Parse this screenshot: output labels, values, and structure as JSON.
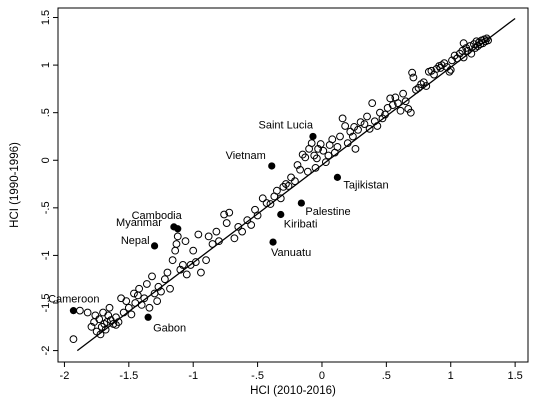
{
  "chart_data": {
    "type": "scatter",
    "xlabel": "HCI (2010-2016)",
    "ylabel": "HCI (1990-1996)",
    "xlim": [
      -2.05,
      1.6
    ],
    "ylim": [
      -2.12,
      1.6
    ],
    "xticks": [
      {
        "v": -2,
        "label": "-2"
      },
      {
        "v": -1.5,
        "label": "-1.5"
      },
      {
        "v": -1,
        "label": "-1"
      },
      {
        "v": -0.5,
        "label": "-.5"
      },
      {
        "v": 0,
        "label": "0"
      },
      {
        "v": 0.5,
        "label": ".5"
      },
      {
        "v": 1,
        "label": "1"
      },
      {
        "v": 1.5,
        "label": "1.5"
      }
    ],
    "yticks": [
      {
        "v": -2,
        "label": "-2"
      },
      {
        "v": -1.5,
        "label": "-1.5"
      },
      {
        "v": -1,
        "label": "-1"
      },
      {
        "v": -0.5,
        "label": "-.5"
      },
      {
        "v": 0,
        "label": "0"
      },
      {
        "v": 0.5,
        "label": ".5"
      },
      {
        "v": 1,
        "label": "1"
      },
      {
        "v": 1.5,
        "label": "1.5"
      }
    ],
    "grid": false,
    "fit_line": {
      "x": [
        -1.9,
        1.5
      ],
      "y": [
        -2.0,
        1.49
      ]
    },
    "highlighted": [
      {
        "label": "Saint Lucia",
        "x": -0.07,
        "y": 0.25,
        "anchor": "end",
        "dx": 0,
        "dy": -8
      },
      {
        "label": "Vietnam",
        "x": -0.39,
        "y": -0.06,
        "anchor": "end",
        "dx": -6,
        "dy": -7
      },
      {
        "label": "Tajikistan",
        "x": 0.12,
        "y": -0.18,
        "anchor": "start",
        "dx": 6,
        "dy": 11
      },
      {
        "label": "Palestine",
        "x": -0.16,
        "y": -0.45,
        "anchor": "start",
        "dx": 4,
        "dy": 12
      },
      {
        "label": "Kiribati",
        "x": -0.32,
        "y": -0.57,
        "anchor": "start",
        "dx": 3,
        "dy": 13
      },
      {
        "label": "Vanuatu",
        "x": -0.38,
        "y": -0.86,
        "anchor": "start",
        "dx": -2,
        "dy": 14
      },
      {
        "label": "Cambodia",
        "x": -1.12,
        "y": -0.72,
        "anchor": "end",
        "dx": 4,
        "dy": -10
      },
      {
        "label": "Myanmar",
        "x": -1.15,
        "y": -0.7,
        "anchor": "end",
        "dx": -12,
        "dy": -1
      },
      {
        "label": "Nepal",
        "x": -1.3,
        "y": -0.9,
        "anchor": "end",
        "dx": -5,
        "dy": -2
      },
      {
        "label": "Cameroon",
        "x": -1.93,
        "y": -1.58,
        "anchor": "end",
        "dx": 26,
        "dy": -8
      },
      {
        "label": "Gabon",
        "x": -1.35,
        "y": -1.65,
        "anchor": "start",
        "dx": 5,
        "dy": 14
      }
    ],
    "points": [
      [
        -1.93,
        -1.88
      ],
      [
        -1.88,
        -1.58
      ],
      [
        -1.82,
        -1.6
      ],
      [
        -1.79,
        -1.75
      ],
      [
        -1.77,
        -1.7
      ],
      [
        -1.76,
        -1.63
      ],
      [
        -1.75,
        -1.8
      ],
      [
        -1.73,
        -1.67
      ],
      [
        -1.72,
        -1.83
      ],
      [
        -1.71,
        -1.75
      ],
      [
        -1.7,
        -1.6
      ],
      [
        -1.69,
        -1.72
      ],
      [
        -1.68,
        -1.78
      ],
      [
        -1.67,
        -1.7
      ],
      [
        -1.66,
        -1.63
      ],
      [
        -1.65,
        -1.55
      ],
      [
        -1.64,
        -1.68
      ],
      [
        -1.62,
        -1.72
      ],
      [
        -1.6,
        -1.65
      ],
      [
        -1.58,
        -1.7
      ],
      [
        -1.56,
        -1.45
      ],
      [
        -1.54,
        -1.6
      ],
      [
        -1.52,
        -1.48
      ],
      [
        -1.5,
        -1.55
      ],
      [
        -1.48,
        -1.62
      ],
      [
        -1.46,
        -1.4
      ],
      [
        -1.45,
        -1.5
      ],
      [
        -1.43,
        -1.42
      ],
      [
        -1.42,
        -1.35
      ],
      [
        -1.4,
        -1.52
      ],
      [
        -1.38,
        -1.45
      ],
      [
        -1.36,
        -1.3
      ],
      [
        -1.34,
        -1.55
      ],
      [
        -1.32,
        -1.22
      ],
      [
        -1.3,
        -1.4
      ],
      [
        -1.28,
        -1.48
      ],
      [
        -1.27,
        -1.33
      ],
      [
        -1.25,
        -1.38
      ],
      [
        -1.22,
        -1.25
      ],
      [
        -1.2,
        -1.18
      ],
      [
        -1.18,
        -1.35
      ],
      [
        -1.16,
        -1.05
      ],
      [
        -1.14,
        -0.95
      ],
      [
        -1.13,
        -0.88
      ],
      [
        -1.12,
        -0.8
      ],
      [
        -1.1,
        -1.15
      ],
      [
        -1.08,
        -1.1
      ],
      [
        -1.06,
        -0.85
      ],
      [
        -1.05,
        -1.2
      ],
      [
        -1.02,
        -1.1
      ],
      [
        -1.0,
        -0.95
      ],
      [
        -0.98,
        -1.07
      ],
      [
        -0.96,
        -0.78
      ],
      [
        -0.94,
        -1.18
      ],
      [
        -0.9,
        -1.05
      ],
      [
        -0.88,
        -0.8
      ],
      [
        -0.85,
        -0.88
      ],
      [
        -0.82,
        -0.75
      ],
      [
        -0.8,
        -0.85
      ],
      [
        -0.76,
        -0.57
      ],
      [
        -0.74,
        -0.66
      ],
      [
        -0.72,
        -0.55
      ],
      [
        -0.68,
        -0.82
      ],
      [
        -0.65,
        -0.7
      ],
      [
        -0.62,
        -0.75
      ],
      [
        -0.58,
        -0.63
      ],
      [
        -0.55,
        -0.68
      ],
      [
        -0.52,
        -0.52
      ],
      [
        -0.5,
        -0.58
      ],
      [
        -0.46,
        -0.4
      ],
      [
        -0.43,
        -0.45
      ],
      [
        -0.4,
        -0.46
      ],
      [
        -0.37,
        -0.38
      ],
      [
        -0.35,
        -0.32
      ],
      [
        -0.32,
        -0.4
      ],
      [
        -0.3,
        -0.28
      ],
      [
        -0.28,
        -0.25
      ],
      [
        -0.26,
        -0.27
      ],
      [
        -0.24,
        -0.18
      ],
      [
        -0.21,
        -0.22
      ],
      [
        -0.19,
        -0.05
      ],
      [
        -0.17,
        -0.1
      ],
      [
        -0.15,
        0.06
      ],
      [
        -0.13,
        0.03
      ],
      [
        -0.11,
        -0.12
      ],
      [
        -0.1,
        0.12
      ],
      [
        -0.08,
        0.18
      ],
      [
        -0.06,
        0.05
      ],
      [
        -0.04,
        0.02
      ],
      [
        -0.03,
        0.12
      ],
      [
        -0.01,
        0.17
      ],
      [
        0.01,
        0.1
      ],
      [
        0.03,
        -0.02
      ],
      [
        0.05,
        0.05
      ],
      [
        0.06,
        0.16
      ],
      [
        0.08,
        0.22
      ],
      [
        0.1,
        0.08
      ],
      [
        0.12,
        0.14
      ],
      [
        0.14,
        0.25
      ],
      [
        0.16,
        0.44
      ],
      [
        0.18,
        0.36
      ],
      [
        0.2,
        0.18
      ],
      [
        0.22,
        0.3
      ],
      [
        0.24,
        0.25
      ],
      [
        0.26,
        0.12
      ],
      [
        0.28,
        0.32
      ],
      [
        0.3,
        0.4
      ],
      [
        0.33,
        0.38
      ],
      [
        0.35,
        0.46
      ],
      [
        0.37,
        0.33
      ],
      [
        0.39,
        0.6
      ],
      [
        0.41,
        0.41
      ],
      [
        0.43,
        0.36
      ],
      [
        0.45,
        0.5
      ],
      [
        0.47,
        0.44
      ],
      [
        0.49,
        0.48
      ],
      [
        0.51,
        0.55
      ],
      [
        0.53,
        0.65
      ],
      [
        0.55,
        0.58
      ],
      [
        0.57,
        0.66
      ],
      [
        0.59,
        0.6
      ],
      [
        0.61,
        0.52
      ],
      [
        0.63,
        0.7
      ],
      [
        0.65,
        0.62
      ],
      [
        0.67,
        0.54
      ],
      [
        0.69,
        0.5
      ],
      [
        0.7,
        0.92
      ],
      [
        0.71,
        0.87
      ],
      [
        0.73,
        0.74
      ],
      [
        0.75,
        0.76
      ],
      [
        0.77,
        0.8
      ],
      [
        0.79,
        0.82
      ],
      [
        0.81,
        0.78
      ],
      [
        0.83,
        0.93
      ],
      [
        0.85,
        0.94
      ],
      [
        0.87,
        0.9
      ],
      [
        0.89,
        0.96
      ],
      [
        0.91,
        0.99
      ],
      [
        0.93,
        1.0
      ],
      [
        0.95,
        1.02
      ],
      [
        0.97,
        0.98
      ],
      [
        0.99,
        0.93
      ],
      [
        1.01,
        1.05
      ],
      [
        1.03,
        1.1
      ],
      [
        1.05,
        1.07
      ],
      [
        1.07,
        1.12
      ],
      [
        1.09,
        1.15
      ],
      [
        1.1,
        1.08
      ],
      [
        1.12,
        1.18
      ],
      [
        1.13,
        1.15
      ],
      [
        1.15,
        1.2
      ],
      [
        1.16,
        1.12
      ],
      [
        1.18,
        1.22
      ],
      [
        1.19,
        1.18
      ],
      [
        1.2,
        1.25
      ],
      [
        1.21,
        1.2
      ],
      [
        1.22,
        1.24
      ],
      [
        1.23,
        1.22
      ],
      [
        1.24,
        1.26
      ],
      [
        1.25,
        1.23
      ],
      [
        1.26,
        1.27
      ],
      [
        1.27,
        1.25
      ],
      [
        1.28,
        1.28
      ],
      [
        1.29,
        1.26
      ],
      [
        1.1,
        1.23
      ],
      [
        1.0,
        0.95
      ],
      [
        0.92,
        0.97
      ],
      [
        0.25,
        0.35
      ],
      [
        -0.05,
        -0.08
      ],
      [
        -1.6,
        -1.73
      ]
    ]
  }
}
